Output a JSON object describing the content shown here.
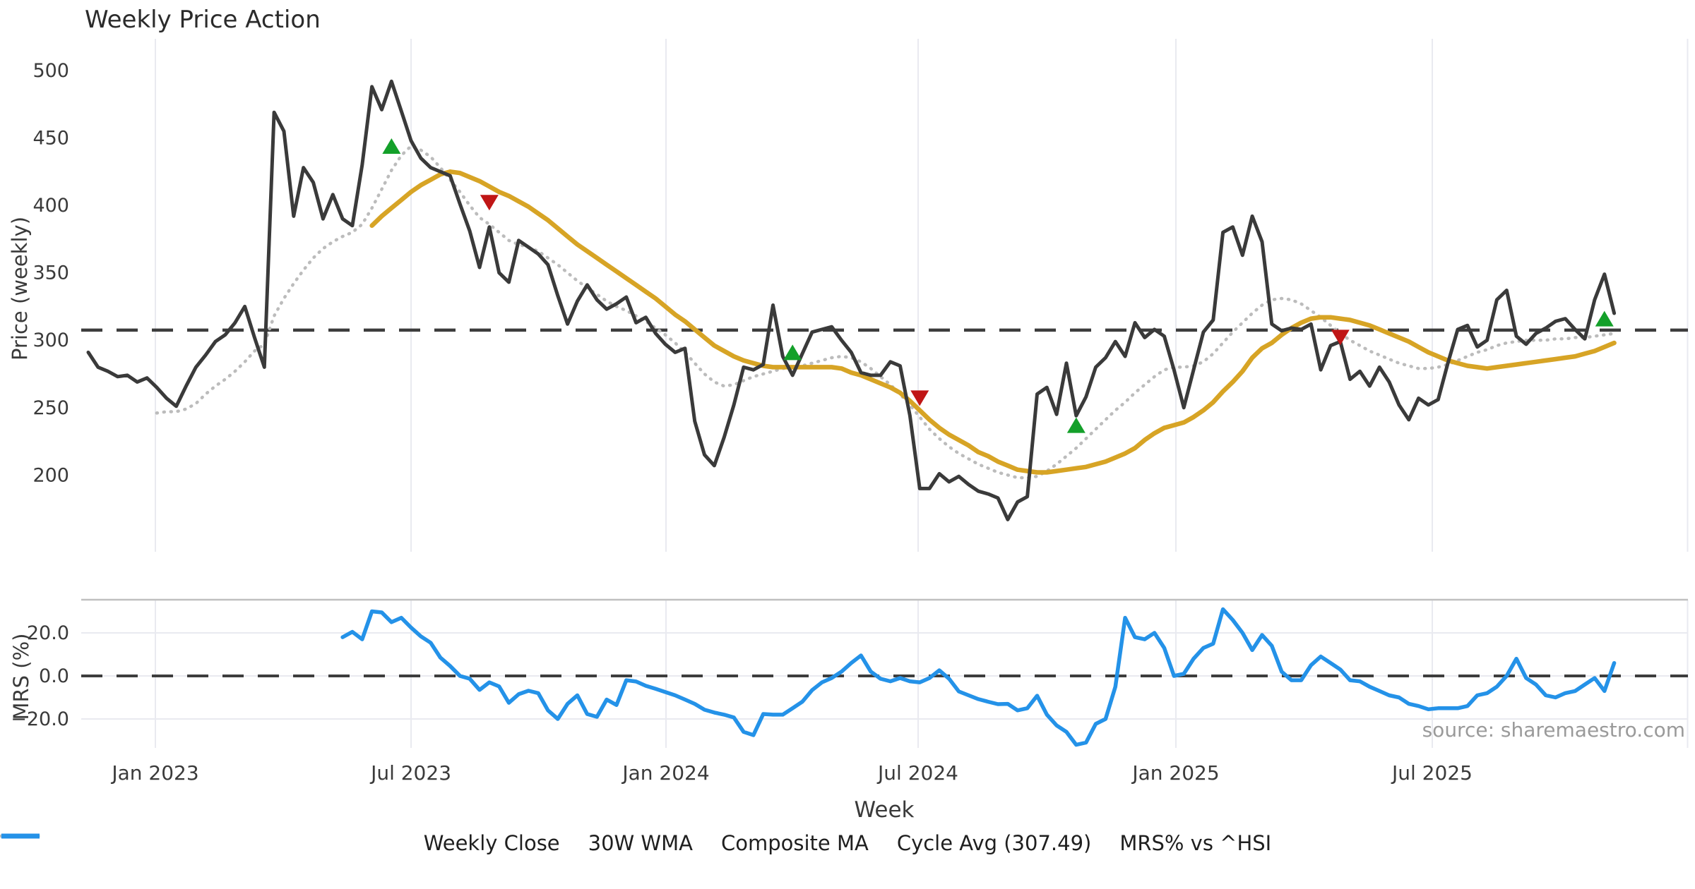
{
  "title": "Weekly Price Action",
  "watermark": "source: sharemaestro.com",
  "axes": {
    "price_axis_label": "Price (weekly)",
    "mrs_axis_label": "MRS (%)",
    "x_axis_label": "Week",
    "price_ticks": [
      500,
      450,
      400,
      350,
      300,
      250,
      200
    ],
    "mrs_ticks": [
      {
        "value": 20,
        "label": "20.0"
      },
      {
        "value": 0,
        "label": "0.0"
      },
      {
        "value": -20,
        "label": "−20.0"
      }
    ],
    "x_ticks": [
      {
        "label": "Jan 2023",
        "week": 6.86
      },
      {
        "label": "Jul 2023",
        "week": 33.0
      },
      {
        "label": "Jan 2024",
        "week": 59.06
      },
      {
        "label": "Jul 2024",
        "week": 84.84
      },
      {
        "label": "Jan 2025",
        "week": 111.19
      },
      {
        "label": "Jul 2025",
        "week": 137.4
      }
    ],
    "extra_gridline_week": 163.5
  },
  "colors": {
    "weekly_close": "#3a3a3a",
    "wma30": "#D7A425",
    "composite": "#bcbcbc",
    "cycle_avg": "#3d3d3d",
    "mrs": "#2492E8",
    "buy_marker": "#14A02A",
    "sell_marker": "#C01616",
    "gridline": "#e9eaf0",
    "panel_border": "#c0c0c0"
  },
  "legend": [
    {
      "label": "Weekly Close",
      "style": "solid",
      "color": "#3a3a3a"
    },
    {
      "label": "30W WMA",
      "style": "solid",
      "color": "#D7A425"
    },
    {
      "label": "Composite MA",
      "style": "dotted",
      "color": "#bcbcbc"
    },
    {
      "label": "Cycle Avg (307.49)",
      "style": "dashed",
      "color": "#3d3d3d"
    },
    {
      "label": "MRS% vs ^HSI",
      "style": "solid",
      "color": "#2492E8"
    }
  ],
  "chart_data": {
    "type": "line",
    "x_unit": "weeks",
    "x_range_weeks": [
      0,
      156
    ],
    "panels": [
      {
        "name": "price",
        "ylabel": "Price (weekly)",
        "ylim": [
          160,
          515
        ],
        "cycle_avg": 307.49,
        "series": [
          {
            "name": "Weekly Close",
            "start_week": 0,
            "values": [
              291,
              280,
              277,
              273,
              274,
              269,
              272,
              265,
              257,
              251,
              266,
              280,
              289,
              299,
              304,
              313,
              325,
              302,
              280,
              469,
              455,
              392,
              428,
              417,
              390,
              408,
              390,
              385,
              430,
              488,
              471,
              492,
              470,
              448,
              435,
              428,
              425,
              422,
              401,
              381,
              354,
              384,
              350,
              343,
              374,
              369,
              364,
              356,
              333,
              312,
              329,
              341,
              330,
              323,
              327,
              332,
              313,
              317,
              305,
              297,
              291,
              294,
              240,
              215,
              207,
              228,
              252,
              280,
              278,
              282,
              326,
              288,
              274,
              290,
              306,
              308,
              310,
              300,
              291,
              276,
              274,
              274,
              284,
              281,
              244,
              190,
              190,
              201,
              195,
              199,
              193,
              188,
              186,
              183,
              167,
              180,
              184,
              260,
              265,
              245,
              283,
              244,
              258,
              280,
              287,
              299,
              288,
              313,
              302,
              308,
              303,
              278,
              250,
              278,
              306,
              315,
              380,
              384,
              363,
              392,
              373,
              312,
              307,
              309,
              308,
              312,
              278,
              296,
              299,
              271,
              277,
              266,
              280,
              269,
              252,
              241,
              257,
              252,
              256,
              283,
              308,
              311,
              295,
              300,
              330,
              337,
              303,
              297,
              305,
              309,
              314,
              316,
              308,
              301,
              330,
              349,
              320
            ]
          },
          {
            "name": "30W WMA",
            "start_week": 29,
            "values": [
              385,
              392,
              398,
              404,
              410,
              415,
              419,
              423,
              425,
              424,
              421,
              418,
              414,
              410,
              407,
              403,
              399,
              394,
              389,
              383,
              377,
              371,
              366,
              361,
              356,
              351,
              346,
              341,
              336,
              331,
              325,
              319,
              314,
              308,
              302,
              296,
              292,
              288,
              285,
              283,
              281,
              280,
              280,
              280,
              280,
              280,
              280,
              280,
              279,
              276,
              274,
              271,
              268,
              265,
              261,
              255,
              248,
              241,
              235,
              230,
              226,
              222,
              217,
              214,
              210,
              207,
              204,
              203,
              202,
              202,
              203,
              204,
              205,
              206,
              208,
              210,
              213,
              216,
              220,
              226,
              231,
              235,
              237,
              239,
              243,
              248,
              254,
              262,
              269,
              277,
              287,
              294,
              298,
              304,
              309,
              313,
              316,
              317,
              317,
              316,
              315,
              313,
              311,
              308,
              305,
              302,
              299,
              295,
              291,
              288,
              285,
              283,
              281,
              280,
              279,
              280,
              281,
              282,
              283,
              284,
              285,
              286,
              287,
              288,
              290,
              292,
              295,
              298
            ]
          },
          {
            "name": "Composite MA",
            "start_week": 7,
            "values": [
              246,
              247,
              247,
              249,
              253,
              260,
              266,
              271,
              277,
              284,
              292,
              297,
              318,
              331,
              342,
              352,
              361,
              368,
              373,
              377,
              380,
              386,
              398,
              412,
              426,
              437,
              444,
              441,
              436,
              428,
              419,
              410,
              400,
              391,
              386,
              380,
              374,
              371,
              369,
              366,
              361,
              356,
              350,
              344,
              339,
              334,
              329,
              325,
              322,
              318,
              314,
              309,
              304,
              298,
              291,
              283,
              275,
              269,
              266,
              267,
              270,
              273,
              275,
              277,
              279,
              280,
              281,
              283,
              285,
              287,
              288,
              287,
              284,
              279,
              273,
              267,
              260,
              252,
              243,
              234,
              227,
              221,
              216,
              212,
              208,
              205,
              202,
              200,
              198,
              198,
              199,
              203,
              208,
              214,
              220,
              227,
              234,
              241,
              248,
              254,
              261,
              267,
              273,
              278,
              280,
              280,
              281,
              284,
              290,
              298,
              306,
              313,
              320,
              326,
              330,
              331,
              330,
              327,
              322,
              317,
              311,
              305,
              300,
              296,
              292,
              289,
              286,
              283,
              281,
              279,
              279,
              280,
              282,
              285,
              288,
              291,
              293,
              296,
              298,
              299,
              300,
              300,
              300,
              301,
              301,
              302,
              302,
              303,
              304,
              305
            ]
          }
        ],
        "markers": {
          "buy": [
            {
              "week": 31,
              "price": 444
            },
            {
              "week": 72,
              "price": 291
            },
            {
              "week": 101,
              "price": 237
            },
            {
              "week": 155,
              "price": 316
            }
          ],
          "sell": [
            {
              "week": 41,
              "price": 402
            },
            {
              "week": 85,
              "price": 257
            },
            {
              "week": 128,
              "price": 302
            }
          ]
        }
      },
      {
        "name": "mrs",
        "ylabel": "MRS (%)",
        "ylim": [
          -36,
          35
        ],
        "zero_line": 0,
        "series": [
          {
            "name": "MRS% vs ^HSI",
            "start_week": 26,
            "values": [
              18,
              20.5,
              17,
              30,
              29.5,
              25,
              27,
              22.5,
              18.4,
              15.4,
              8.5,
              4.6,
              0,
              -1.3,
              -6.5,
              -3,
              -4.9,
              -12.5,
              -8.5,
              -6.9,
              -8,
              -16,
              -20,
              -13,
              -9,
              -17.7,
              -19,
              -11,
              -13.5,
              -2,
              -2.6,
              -4.6,
              -6,
              -7.5,
              -9,
              -11,
              -13,
              -15.7,
              -17,
              -18,
              -19.3,
              -26,
              -27.5,
              -17.7,
              -18,
              -18,
              -15,
              -12,
              -6.6,
              -3,
              -1,
              2,
              6,
              9.5,
              2,
              -1.3,
              -2.5,
              -1,
              -2.5,
              -3,
              -1,
              2.6,
              -1.3,
              -7.2,
              -9,
              -10.8,
              -12,
              -13.1,
              -13,
              -16,
              -15,
              -9.2,
              -18,
              -23,
              -26,
              -32,
              -31,
              -22.3,
              -20,
              -5,
              27,
              18,
              17,
              20,
              13,
              0,
              1,
              8,
              13,
              15,
              31,
              26,
              20,
              12,
              19,
              14,
              2,
              -2,
              -2,
              5,
              9,
              6,
              3,
              -2,
              -2.5,
              -5,
              -7,
              -9,
              -10,
              -13,
              -14,
              -15.5,
              -15,
              -15,
              -15,
              -14,
              -9,
              -8,
              -5,
              0,
              8,
              -1,
              -4,
              -9,
              -10,
              -8,
              -7,
              -4,
              -1,
              -7,
              6
            ]
          }
        ]
      }
    ]
  }
}
